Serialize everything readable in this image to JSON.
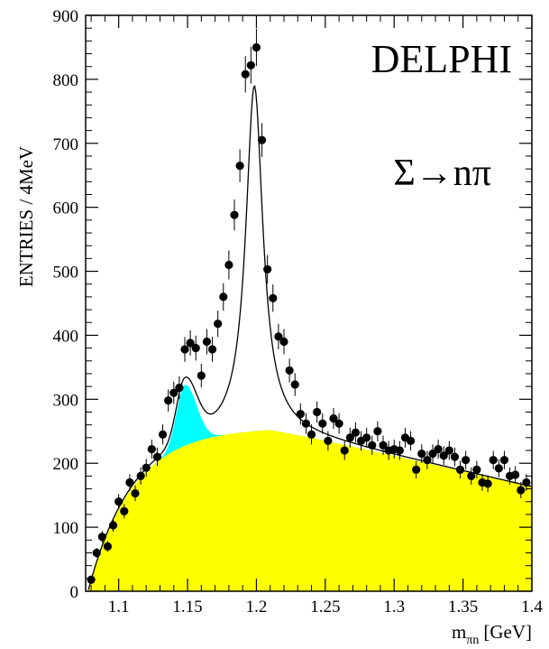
{
  "chart_data": {
    "type": "scatter",
    "title": "DELPHI",
    "annotation": "Σ→nπ",
    "xlabel": "m",
    "xlabel_sub": "πn",
    "xlabel_unit": "[GeV]",
    "ylabel": "ENTRIES / 4MeV",
    "xlim": [
      1.076,
      1.4
    ],
    "ylim": [
      0,
      900
    ],
    "xticks": [
      1.1,
      1.15,
      1.2,
      1.25,
      1.3,
      1.35,
      1.4
    ],
    "xtick_labels": [
      "1.1",
      "1.15",
      "1.2",
      "1.25",
      "1.3",
      "1.35",
      "1.4"
    ],
    "yticks": [
      0,
      100,
      200,
      300,
      400,
      500,
      600,
      700,
      800,
      900
    ],
    "ytick_labels": [
      "0",
      "100",
      "200",
      "300",
      "400",
      "500",
      "600",
      "700",
      "800",
      "900"
    ],
    "grid": false,
    "colors": {
      "background_fill": "#ffff00",
      "sigma1385_fill": "#00ffff",
      "points": "#000000",
      "fit": "#000000"
    },
    "data_points": {
      "x": [
        1.08,
        1.084,
        1.088,
        1.092,
        1.096,
        1.1,
        1.104,
        1.108,
        1.112,
        1.116,
        1.12,
        1.124,
        1.128,
        1.132,
        1.136,
        1.14,
        1.144,
        1.148,
        1.152,
        1.156,
        1.16,
        1.164,
        1.168,
        1.172,
        1.176,
        1.18,
        1.184,
        1.188,
        1.192,
        1.196,
        1.2,
        1.204,
        1.208,
        1.212,
        1.216,
        1.22,
        1.224,
        1.228,
        1.232,
        1.236,
        1.24,
        1.244,
        1.248,
        1.252,
        1.256,
        1.26,
        1.264,
        1.268,
        1.272,
        1.276,
        1.28,
        1.284,
        1.288,
        1.292,
        1.296,
        1.3,
        1.304,
        1.308,
        1.312,
        1.316,
        1.32,
        1.324,
        1.328,
        1.332,
        1.336,
        1.34,
        1.344,
        1.348,
        1.352,
        1.356,
        1.36,
        1.364,
        1.368,
        1.372,
        1.376,
        1.38,
        1.384,
        1.388,
        1.392,
        1.396
      ],
      "y": [
        18,
        60,
        85,
        70,
        103,
        140,
        125,
        170,
        153,
        180,
        193,
        222,
        210,
        245,
        298,
        310,
        318,
        378,
        388,
        380,
        337,
        390,
        378,
        418,
        460,
        510,
        588,
        665,
        808,
        822,
        850,
        705,
        503,
        458,
        398,
        390,
        345,
        323,
        277,
        262,
        245,
        280,
        262,
        235,
        270,
        262,
        220,
        240,
        248,
        235,
        240,
        228,
        250,
        228,
        220,
        222,
        220,
        240,
        235,
        190,
        215,
        205,
        215,
        222,
        212,
        220,
        210,
        190,
        205,
        180,
        190,
        170,
        168,
        205,
        192,
        205,
        180,
        182,
        158,
        170
      ]
    },
    "series": [
      {
        "name": "",
        "type": "fit_curve"
      },
      {
        "name": "",
        "type": "background_area"
      },
      {
        "name": "",
        "type": "sigma1385_area"
      }
    ]
  }
}
